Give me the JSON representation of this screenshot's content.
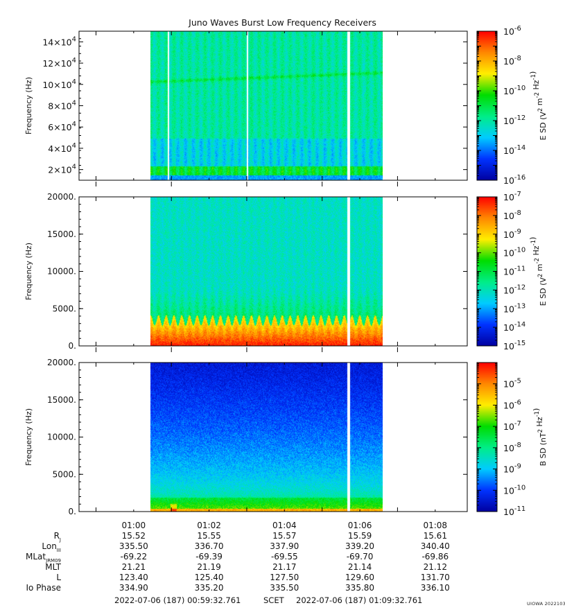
{
  "title": "Juno Waves Burst Low Frequency Receivers",
  "credit": "UIOWA 20221030",
  "time_axis": {
    "tick_labels": [
      "01:00",
      "01:02",
      "01:04",
      "01:06",
      "01:08"
    ],
    "start_label": "2022-07-06 (187) 00:59:32.761",
    "mid_label": "SCET",
    "end_label": "2022-07-06 (187) 01:09:32.761"
  },
  "ephemeris": {
    "rows": [
      {
        "label": "R",
        "sub": "J",
        "values": [
          "15.52",
          "15.55",
          "15.57",
          "15.59",
          "15.61"
        ]
      },
      {
        "label": "Lon",
        "sub": "III",
        "values": [
          "335.50",
          "336.70",
          "337.90",
          "339.20",
          "340.40"
        ]
      },
      {
        "label": "MLat",
        "sub": "JRM09",
        "values": [
          "-69.22",
          "-69.39",
          "-69.55",
          "-69.70",
          "-69.86"
        ]
      },
      {
        "label": "MLT",
        "sub": "",
        "values": [
          "21.21",
          "21.19",
          "21.17",
          "21.14",
          "21.12"
        ]
      },
      {
        "label": "L",
        "sub": "",
        "values": [
          "123.40",
          "125.40",
          "127.50",
          "129.60",
          "131.70"
        ]
      },
      {
        "label": "Io Phase",
        "sub": "",
        "values": [
          "334.90",
          "335.20",
          "335.50",
          "335.80",
          "336.10"
        ]
      }
    ]
  },
  "colorscale": [
    "#0000a0",
    "#0033ff",
    "#00ccff",
    "#00ee88",
    "#00dd00",
    "#ffee00",
    "#ff8800",
    "#ff0000"
  ],
  "chart_data": [
    {
      "type": "heatmap",
      "title": "Juno Waves Burst Low Frequency Receivers",
      "ylabel": "Frequency (Hz)",
      "ylim": [
        10000,
        150000
      ],
      "ytick_labels": [
        "2x10^4",
        "4x10^4",
        "6x10^4",
        "8x10^4",
        "10x10^4",
        "12x10^4",
        "14x10^4"
      ],
      "colorbar_label": "E SD (V^2 m^-2 Hz^-1)",
      "colorbar_range_exp": [
        -16,
        -6
      ],
      "colorbar_tick_exps": [
        "-16",
        "-14",
        "-12",
        "-10",
        "-8",
        "-6"
      ],
      "xlabel": "",
      "data_span_minutes": [
        1.45,
        7.6
      ],
      "data_gaps_minutes": [
        [
          1.9,
          1.93
        ],
        [
          4.0,
          4.03
        ],
        [
          6.65,
          6.72
        ]
      ],
      "features": "broadband emission ~1e-13 to 1e-12 with narrowband line near 1.05x10^5 Hz and enhanced band below 5x10^4 Hz"
    },
    {
      "type": "heatmap",
      "ylabel": "Frequency (Hz)",
      "ylim": [
        0,
        20000
      ],
      "ytick_labels": [
        "0.",
        "5000.",
        "10000.",
        "15000.",
        "20000."
      ],
      "colorbar_label": "E SD (V^2 m^-2 Hz^-1)",
      "colorbar_range_exp": [
        -15,
        -7
      ],
      "colorbar_tick_exps": [
        "-15",
        "-14",
        "-13",
        "-12",
        "-11",
        "-10",
        "-9",
        "-8",
        "-7"
      ],
      "data_span_minutes": [
        1.45,
        7.6
      ],
      "data_gaps_minutes": [
        [
          6.65,
          6.72
        ]
      ],
      "features": "intense emission below ~4000 Hz with periodic modulation"
    },
    {
      "type": "heatmap",
      "ylabel": "Frequency (Hz)",
      "ylim": [
        0,
        20000
      ],
      "ytick_labels": [
        "0.",
        "5000.",
        "10000.",
        "15000.",
        "20000."
      ],
      "colorbar_label": "B SD (nT^2 Hz^-1)",
      "colorbar_range_exp": [
        -11,
        -4
      ],
      "colorbar_tick_exps": [
        "-11",
        "-10",
        "-9",
        "-8",
        "-7",
        "-6",
        "-5"
      ],
      "data_span_minutes": [
        1.45,
        7.6
      ],
      "data_gaps_minutes": [
        [
          6.65,
          6.72
        ]
      ],
      "features": "magnetic emission concentrated below ~2000 Hz"
    }
  ]
}
